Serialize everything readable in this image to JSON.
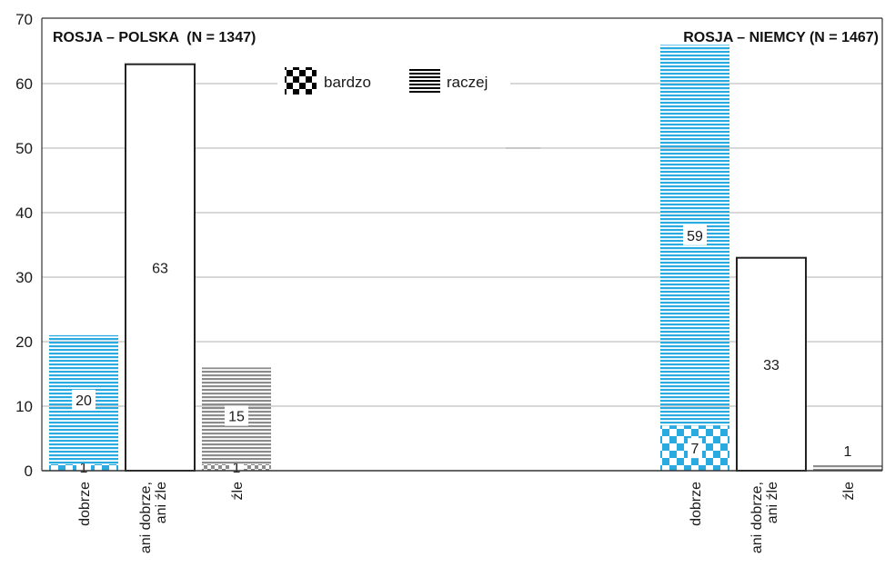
{
  "chart_data": {
    "type": "bar",
    "stacked": true,
    "yaxis": {
      "ticks": [
        0,
        10,
        20,
        30,
        40,
        50,
        60,
        70
      ],
      "range": [
        0,
        70
      ],
      "grid": true
    },
    "legend": {
      "placement": "top-center",
      "items": [
        {
          "label": "bardzo",
          "pattern": "checker"
        },
        {
          "label": "raczej",
          "pattern": "horizontal-stripes"
        }
      ]
    },
    "colors": {
      "positive": "#29abe2",
      "negative": "#8c8c8c",
      "neutral_border": "#222222",
      "grid": "#b0b0b0"
    },
    "panels": [
      {
        "title": "ROSJA – POLSKA  (N = 1347)",
        "bars": [
          {
            "category": [
              "dobrze"
            ],
            "tone": "positive",
            "segments": [
              {
                "kind": "bardzo",
                "value": 1
              },
              {
                "kind": "raczej",
                "value": 20
              }
            ],
            "labels": [
              "1",
              "20"
            ]
          },
          {
            "category": [
              "ani dobrze,",
              "ani źle"
            ],
            "tone": "neutral",
            "segments": [
              {
                "kind": "neutral",
                "value": 63
              }
            ],
            "labels": [
              "63"
            ]
          },
          {
            "category": [
              "źle"
            ],
            "tone": "negative",
            "segments": [
              {
                "kind": "bardzo",
                "value": 1
              },
              {
                "kind": "raczej",
                "value": 15
              }
            ],
            "labels": [
              "1",
              "15"
            ]
          }
        ]
      },
      {
        "title": "ROSJA – NIEMCY (N = 1467)",
        "bars": [
          {
            "category": [
              "dobrze"
            ],
            "tone": "positive",
            "segments": [
              {
                "kind": "bardzo",
                "value": 7
              },
              {
                "kind": "raczej",
                "value": 59
              }
            ],
            "labels": [
              "7",
              "59"
            ]
          },
          {
            "category": [
              "ani dobrze,",
              "ani źle"
            ],
            "tone": "neutral",
            "segments": [
              {
                "kind": "neutral",
                "value": 33
              }
            ],
            "labels": [
              "33"
            ]
          },
          {
            "category": [
              "źle"
            ],
            "tone": "negative",
            "segments": [
              {
                "kind": "raczej",
                "value": 1
              }
            ],
            "labels": [
              "1"
            ]
          }
        ]
      }
    ]
  }
}
